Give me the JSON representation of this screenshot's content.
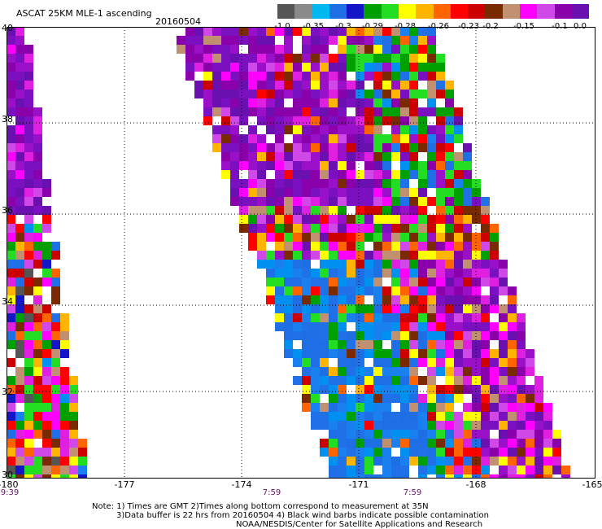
{
  "title": "ASCAT 25KM MLE-1 ascending",
  "date": "20160504",
  "colorbar": {
    "colors": [
      "#555555",
      "#8a8a8a",
      "#00b8f0",
      "#1e6ee6",
      "#1414c8",
      "#00a000",
      "#22dd22",
      "#ffff00",
      "#ffb400",
      "#ff6400",
      "#ff0000",
      "#cc0000",
      "#7a2a00",
      "#c09070",
      "#ff00ff",
      "#d048e8",
      "#8a00aa",
      "#6a10b0"
    ],
    "labels": [
      "-1.0",
      "-0.35",
      "-0.3",
      "-0.29",
      "-0.28",
      "-0.26",
      "-0.23",
      "-0.2",
      "-0.15",
      "-0.1",
      "0.0"
    ]
  },
  "map": {
    "lon_labels": [
      "-180",
      "-177",
      "-174",
      "-171",
      "-168",
      "-165"
    ],
    "lat_labels": [
      "40",
      "38",
      "36",
      "34",
      "32",
      "30"
    ],
    "time_labels": [
      "9:39",
      "7:59",
      "7:59"
    ]
  },
  "notes": [
    "Note: 1) Times are GMT 2)Times along bottom correspond to measurement at 35N",
    "3)Data buffer is 22 hrs from 20160504 4) Black wind barbs indicate possible contamination",
    "NOAA/NESDIS/Center for Satellite Applications and Research"
  ]
}
